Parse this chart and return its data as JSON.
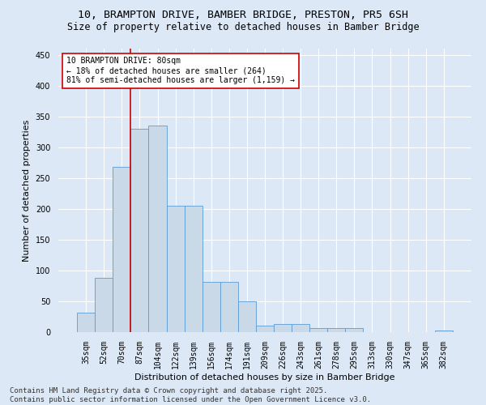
{
  "title_line1": "10, BRAMPTON DRIVE, BAMBER BRIDGE, PRESTON, PR5 6SH",
  "title_line2": "Size of property relative to detached houses in Bamber Bridge",
  "xlabel": "Distribution of detached houses by size in Bamber Bridge",
  "ylabel": "Number of detached properties",
  "categories": [
    "35sqm",
    "52sqm",
    "70sqm",
    "87sqm",
    "104sqm",
    "122sqm",
    "139sqm",
    "156sqm",
    "174sqm",
    "191sqm",
    "209sqm",
    "226sqm",
    "243sqm",
    "261sqm",
    "278sqm",
    "295sqm",
    "313sqm",
    "330sqm",
    "347sqm",
    "365sqm",
    "382sqm"
  ],
  "values": [
    32,
    88,
    268,
    330,
    335,
    205,
    205,
    82,
    82,
    50,
    10,
    13,
    13,
    6,
    7,
    7,
    0,
    0,
    0,
    0,
    2
  ],
  "bar_color": "#c9d9e8",
  "bar_edge_color": "#5b9bd5",
  "property_line_x": 2.5,
  "annotation_line1": "10 BRAMPTON DRIVE: 80sqm",
  "annotation_line2": "← 18% of detached houses are smaller (264)",
  "annotation_line3": "81% of semi-detached houses are larger (1,159) →",
  "annotation_box_facecolor": "#ffffff",
  "annotation_box_edgecolor": "#cc0000",
  "vline_color": "#cc0000",
  "ylim": [
    0,
    460
  ],
  "yticks": [
    0,
    50,
    100,
    150,
    200,
    250,
    300,
    350,
    400,
    450
  ],
  "bg_color": "#dce8f5",
  "plot_bg_color": "#dce8f5",
  "grid_color": "#ffffff",
  "footer": "Contains HM Land Registry data © Crown copyright and database right 2025.\nContains public sector information licensed under the Open Government Licence v3.0.",
  "title_fontsize": 9.5,
  "subtitle_fontsize": 8.5,
  "axis_label_fontsize": 8,
  "tick_fontsize": 7,
  "annot_fontsize": 7,
  "footer_fontsize": 6.5
}
